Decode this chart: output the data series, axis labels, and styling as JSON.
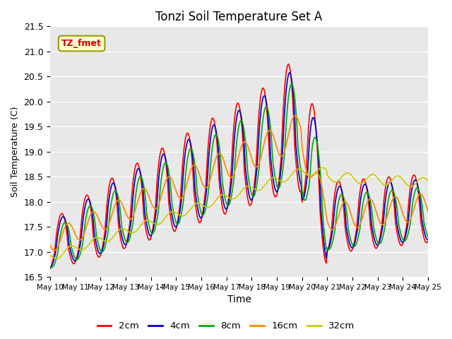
{
  "title": "Tonzi Soil Temperature Set A",
  "xlabel": "Time",
  "ylabel": "Soil Temperature (C)",
  "ylim": [
    16.5,
    21.5
  ],
  "annotation_text": "TZ_fmet",
  "annotation_color": "#cc0000",
  "annotation_bg": "#ffffcc",
  "annotation_border": "#999900",
  "series_colors": {
    "2cm": "#ff0000",
    "4cm": "#0000cc",
    "8cm": "#00aa00",
    "16cm": "#ff8800",
    "32cm": "#cccc00"
  },
  "background_color": "#e8e8e8",
  "line_width": 1.2,
  "xtick_labels": [
    "May 10",
    "May 11",
    "May 12",
    "May 13",
    "May 14",
    "May 15",
    "May 16",
    "May 17",
    "May 18",
    "May 19",
    "May 20",
    "May 21",
    "May 22",
    "May 23",
    "May 24",
    "May 25"
  ],
  "ytick_values": [
    16.5,
    17.0,
    17.5,
    18.0,
    18.5,
    19.0,
    19.5,
    20.0,
    20.5,
    21.0,
    21.5
  ]
}
